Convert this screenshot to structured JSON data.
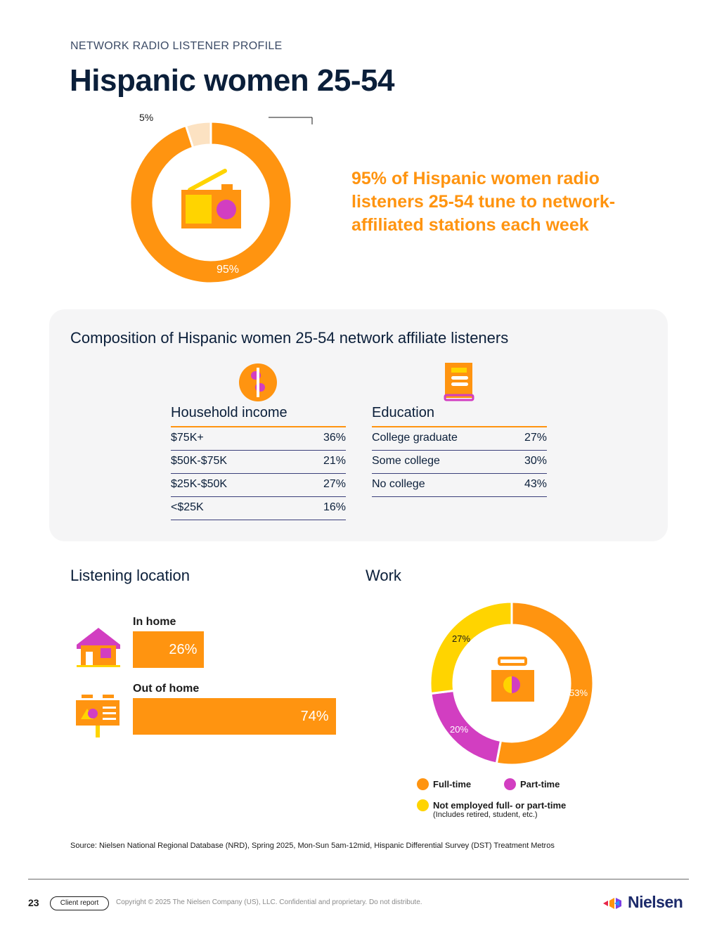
{
  "header": {
    "eyebrow": "NETWORK RADIO LISTENER PROFILE",
    "title": "Hispanic women 25-54"
  },
  "reach": {
    "headline": "95% of Hispanic women radio listeners 25-54 tune to network-affiliated stations each week",
    "chart_data": {
      "type": "pie",
      "donut": true,
      "categories": [
        "",
        ""
      ],
      "values": [
        95,
        5
      ],
      "labels": [
        "95%",
        "5%"
      ],
      "colors": [
        "#FF9410",
        "#FCE2C2"
      ]
    },
    "icon": "radio-icon"
  },
  "composition": {
    "title": "Composition of Hispanic women 25-54 network affiliate listeners",
    "income": {
      "icon": "dollar-coin-icon",
      "heading": "Household income",
      "rows": [
        {
          "label": "$75K+",
          "value": "36%"
        },
        {
          "label": "$50K-$75K",
          "value": "21%"
        },
        {
          "label": "$25K-$50K",
          "value": "27%"
        },
        {
          "label": "<$25K",
          "value": "16%"
        }
      ]
    },
    "education": {
      "icon": "book-icon",
      "heading": "Education",
      "rows": [
        {
          "label": "College graduate",
          "value": "27%"
        },
        {
          "label": "Some college",
          "value": "30%"
        },
        {
          "label": "No college",
          "value": "43%"
        }
      ]
    }
  },
  "location": {
    "heading": "Listening location",
    "chart_data": {
      "type": "bar",
      "orientation": "horizontal",
      "categories": [
        "In home",
        "Out of home"
      ],
      "values": [
        26,
        74
      ],
      "labels": [
        "26%",
        "74%"
      ],
      "xlim": [
        0,
        100
      ],
      "color": "#FF9410"
    },
    "icons": [
      "house-icon",
      "billboard-icon"
    ]
  },
  "work": {
    "heading": "Work",
    "chart_data": {
      "type": "pie",
      "donut": true,
      "categories": [
        "Full-time",
        "Part-time",
        "Not employed full- or part-time"
      ],
      "values": [
        53,
        20,
        27
      ],
      "labels": [
        "53%",
        "20%",
        "27%"
      ],
      "colors": [
        "#FF9410",
        "#D23EC1",
        "#FFD400"
      ]
    },
    "legend_note": "(Includes retired, student, etc.)",
    "icon": "briefcase-icon"
  },
  "source": "Source: Nielsen National Regional Database (NRD), Spring 2025, Mon-Sun 5am-12mid, Hispanic Differential Survey (DST) Treatment Metros",
  "footer": {
    "page_number": "23",
    "badge": "Client report",
    "copyright": "Copyright © 2025 The Nielsen Company (US), LLC. Confidential and proprietary. Do not distribute.",
    "brand": "Nielsen",
    "logo_icon": "nielsen-logo-icon"
  }
}
